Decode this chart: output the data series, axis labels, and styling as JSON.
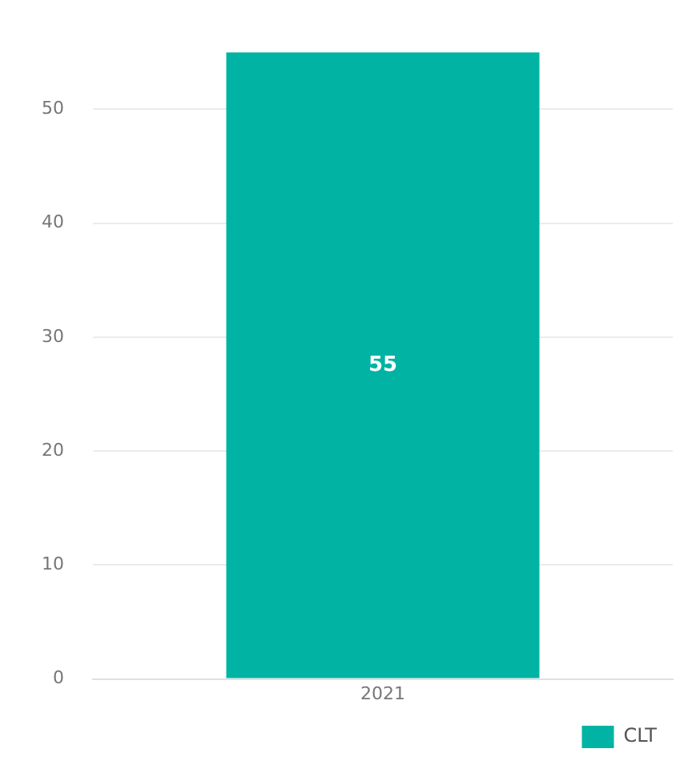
{
  "chart_data": {
    "type": "bar",
    "categories": [
      "2021"
    ],
    "series": [
      {
        "name": "CLT",
        "color": "#01b3a3",
        "values": [
          55
        ]
      }
    ],
    "ylim": [
      0,
      55
    ],
    "yticks": [
      0,
      10,
      20,
      30,
      40,
      50
    ],
    "grid": "y",
    "legend": "bottom right",
    "data_labels": true
  }
}
